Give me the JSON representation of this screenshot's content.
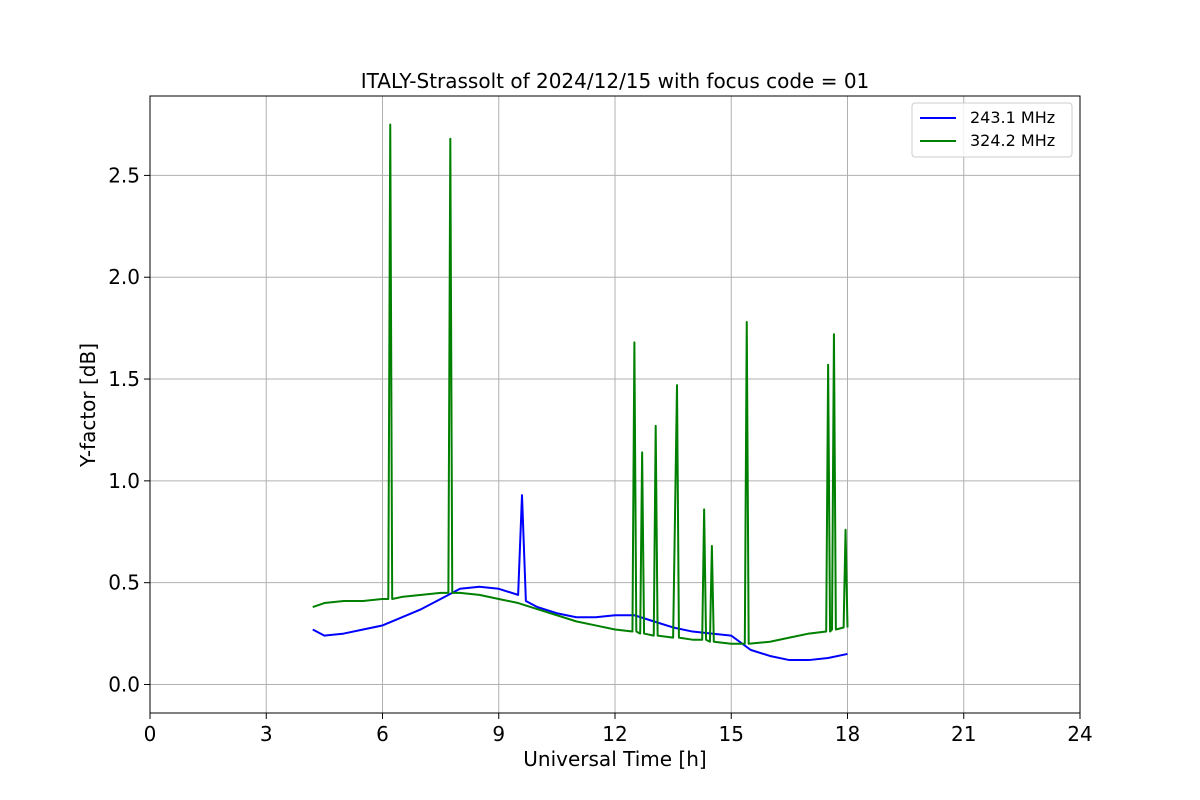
{
  "chart_data": {
    "type": "line",
    "title": "ITALY-Strassolt of 2024/12/15 with focus code = 01",
    "xlabel": "Universal Time [h]",
    "ylabel": "Y-factor [dB]",
    "xlim": [
      0,
      24
    ],
    "ylim": [
      -0.14,
      2.89
    ],
    "xticks": [
      0,
      3,
      6,
      9,
      12,
      15,
      18,
      21,
      24
    ],
    "yticks": [
      0.0,
      0.5,
      1.0,
      1.5,
      2.0,
      2.5
    ],
    "xtick_labels": [
      "0",
      "3",
      "6",
      "9",
      "12",
      "15",
      "18",
      "21",
      "24"
    ],
    "ytick_labels": [
      "0.0",
      "0.5",
      "1.0",
      "1.5",
      "2.0",
      "2.5"
    ],
    "grid": true,
    "legend_position": "top-right",
    "series": [
      {
        "name": "243.1 MHz",
        "color": "#0000ff",
        "x": [
          4.2,
          4.5,
          5.0,
          5.5,
          6.0,
          6.5,
          7.0,
          7.5,
          8.0,
          8.5,
          9.0,
          9.5,
          9.6,
          9.7,
          10.0,
          10.5,
          11.0,
          11.5,
          12.0,
          12.5,
          13.0,
          13.5,
          14.0,
          14.5,
          15.0,
          15.5,
          16.0,
          16.5,
          17.0,
          17.5,
          18.0
        ],
        "y": [
          0.27,
          0.24,
          0.25,
          0.27,
          0.29,
          0.33,
          0.37,
          0.42,
          0.47,
          0.48,
          0.47,
          0.44,
          0.93,
          0.41,
          0.38,
          0.35,
          0.33,
          0.33,
          0.34,
          0.34,
          0.31,
          0.28,
          0.26,
          0.25,
          0.24,
          0.17,
          0.14,
          0.12,
          0.12,
          0.13,
          0.15
        ]
      },
      {
        "name": "324.2 MHz",
        "color": "#008000",
        "x": [
          4.2,
          4.5,
          5.0,
          5.5,
          6.0,
          6.15,
          6.2,
          6.25,
          6.5,
          7.0,
          7.5,
          7.7,
          7.75,
          7.8,
          8.0,
          8.5,
          9.0,
          9.5,
          10.0,
          10.5,
          11.0,
          11.5,
          12.0,
          12.45,
          12.5,
          12.55,
          12.65,
          12.7,
          12.75,
          13.0,
          13.05,
          13.1,
          13.5,
          13.6,
          13.65,
          14.0,
          14.25,
          14.3,
          14.35,
          14.45,
          14.5,
          14.55,
          15.0,
          15.35,
          15.4,
          15.45,
          16.0,
          16.5,
          17.0,
          17.45,
          17.5,
          17.55,
          17.6,
          17.65,
          17.7,
          17.9,
          17.95,
          18.0
        ],
        "y": [
          0.38,
          0.4,
          0.41,
          0.41,
          0.42,
          0.42,
          2.75,
          0.42,
          0.43,
          0.44,
          0.45,
          0.45,
          2.68,
          0.45,
          0.45,
          0.44,
          0.42,
          0.4,
          0.37,
          0.34,
          0.31,
          0.29,
          0.27,
          0.26,
          1.68,
          0.26,
          0.25,
          1.14,
          0.25,
          0.24,
          1.27,
          0.24,
          0.23,
          1.47,
          0.23,
          0.22,
          0.22,
          0.86,
          0.22,
          0.21,
          0.68,
          0.21,
          0.2,
          0.2,
          1.78,
          0.2,
          0.21,
          0.23,
          0.25,
          0.26,
          1.57,
          0.26,
          0.27,
          1.72,
          0.27,
          0.28,
          0.76,
          0.28
        ]
      }
    ]
  }
}
